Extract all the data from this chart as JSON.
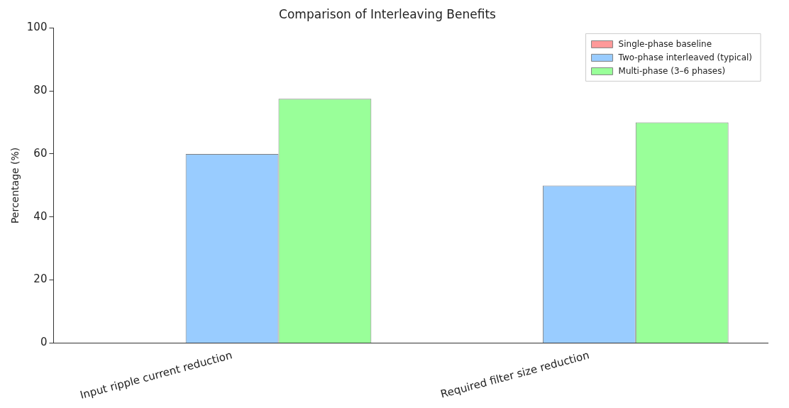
{
  "chart_data": {
    "type": "bar",
    "title": "Comparison of Interleaving Benefits",
    "ylabel": "Percentage (%)",
    "categories": [
      "Input ripple current reduction",
      "Required filter size reduction"
    ],
    "series": [
      {
        "name": "Single-phase baseline",
        "color": "#ff9999",
        "values": [
          0,
          0
        ]
      },
      {
        "name": "Two-phase interleaved (typical)",
        "color": "#99ccff",
        "values": [
          60,
          50
        ]
      },
      {
        "name": "Multi-phase (3–6 phases)",
        "color": "#99ff99",
        "values": [
          77.5,
          70
        ]
      }
    ],
    "ylim": [
      0,
      100
    ],
    "yticks": [
      0,
      20,
      40,
      60,
      80,
      100
    ],
    "grid": false,
    "legend": "top right"
  }
}
